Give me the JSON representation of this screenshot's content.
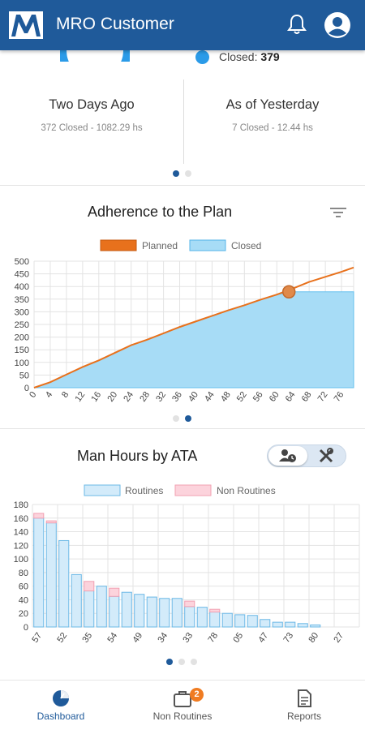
{
  "header": {
    "title": "MRO Customer",
    "icons": [
      "logo-icon",
      "bell-icon",
      "user-avatar-icon"
    ]
  },
  "summary": {
    "closed_label": "Closed:",
    "closed_value": "379",
    "columns": [
      {
        "title": "Two Days Ago",
        "subtitle": "372 Closed - 1082.29 hs"
      },
      {
        "title": "As of Yesterday",
        "subtitle": "7 Closed - 12.44 hs"
      }
    ]
  },
  "adherence": {
    "title": "Adherence to the Plan",
    "legend": [
      "Planned",
      "Closed"
    ]
  },
  "man_hours": {
    "title": "Man Hours by ATA",
    "legend": [
      "Routines",
      "Non Routines"
    ]
  },
  "colors": {
    "brand": "#1f5a9a",
    "planned": "#e8711c",
    "closed_fill": "#a7dcf6",
    "routine_fill": "#d3ebfa",
    "routine_stroke": "#6bb8e6",
    "nonroutine_fill": "#fcd3dc",
    "nonroutine_stroke": "#f2a0b2"
  },
  "chart_data": [
    {
      "type": "area",
      "title": "Adherence to the Plan",
      "x": [
        0,
        4,
        8,
        12,
        16,
        20,
        24,
        28,
        32,
        36,
        40,
        44,
        48,
        52,
        56,
        60,
        64,
        68,
        72,
        76,
        79
      ],
      "x_ticks": [
        "0",
        "4",
        "8",
        "12",
        "16",
        "20",
        "24",
        "28",
        "32",
        "36",
        "40",
        "44",
        "48",
        "52",
        "56",
        "60",
        "64",
        "68",
        "72",
        "76"
      ],
      "y_ticks": [
        "0",
        "50",
        "100",
        "150",
        "200",
        "250",
        "300",
        "350",
        "400",
        "450",
        "500"
      ],
      "ylim": [
        0,
        500
      ],
      "xlim": [
        0,
        79
      ],
      "series": [
        {
          "name": "Planned",
          "type": "line",
          "values": [
            0,
            22,
            52,
            82,
            108,
            138,
            168,
            190,
            215,
            240,
            262,
            284,
            306,
            326,
            348,
            368,
            392,
            418,
            438,
            458,
            475
          ]
        },
        {
          "name": "Closed",
          "type": "area",
          "values": [
            0,
            22,
            52,
            82,
            108,
            138,
            168,
            190,
            215,
            240,
            262,
            284,
            306,
            326,
            348,
            368,
            379,
            379,
            379,
            379,
            379
          ]
        }
      ],
      "marker": {
        "x": 63,
        "y": 379
      },
      "grid": true,
      "legend": "top"
    },
    {
      "type": "bar",
      "title": "Man Hours by ATA",
      "categories": [
        "57",
        "",
        "52",
        "",
        "35",
        "",
        "54",
        "",
        "49",
        "",
        "34",
        "",
        "33",
        "",
        "78",
        "",
        "05",
        "",
        "47",
        "",
        "73",
        "",
        "80",
        "",
        "27",
        ""
      ],
      "tick_labels": [
        "57",
        "52",
        "35",
        "54",
        "49",
        "34",
        "33",
        "78",
        "05",
        "47",
        "73",
        "80",
        "27"
      ],
      "y_ticks": [
        "0",
        "20",
        "40",
        "60",
        "80",
        "100",
        "120",
        "140",
        "160",
        "180"
      ],
      "ylim": [
        0,
        180
      ],
      "series": [
        {
          "name": "Routines",
          "values": [
            160,
            153,
            127,
            77,
            53,
            60,
            45,
            51,
            48,
            44,
            42,
            42,
            30,
            29,
            22,
            20,
            18,
            17,
            11,
            7,
            7,
            5,
            3,
            0,
            0,
            0
          ]
        },
        {
          "name": "Non Routines",
          "values": [
            7,
            3,
            0,
            0,
            14,
            0,
            12,
            0,
            0,
            0,
            0,
            0,
            8,
            0,
            4,
            0,
            0,
            0,
            0,
            0,
            0,
            0,
            0,
            0,
            0,
            0
          ]
        }
      ],
      "stacked": true,
      "grid": true,
      "legend": "top"
    }
  ],
  "pagination": {
    "summary": {
      "count": 2,
      "active": 0
    },
    "adherence": {
      "count": 2,
      "active": 1
    },
    "man_hours": {
      "count": 3,
      "active": 0
    }
  },
  "toggle": {
    "options": [
      "user-clock-icon",
      "tools-icon"
    ],
    "active": 0
  },
  "bottom_nav": {
    "items": [
      {
        "label": "Dashboard",
        "icon": "dashboard-icon",
        "active": true
      },
      {
        "label": "Non Routines",
        "icon": "non-routines-icon",
        "badge": "2"
      },
      {
        "label": "Reports",
        "icon": "reports-icon"
      }
    ]
  }
}
